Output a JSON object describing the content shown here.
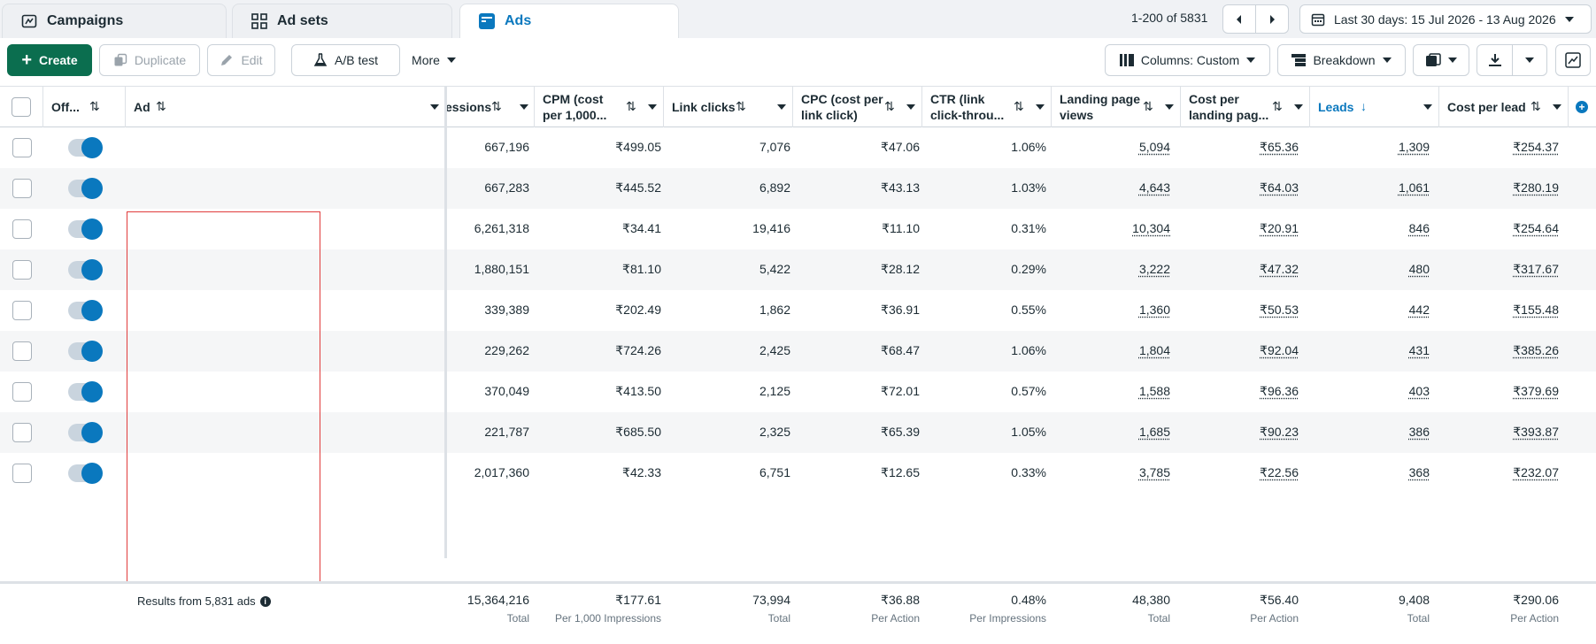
{
  "tabs": [
    {
      "label": "Campaigns",
      "icon": "campaign-icon"
    },
    {
      "label": "Ad sets",
      "icon": "grid-icon"
    },
    {
      "label": "Ads",
      "icon": "ad-icon"
    }
  ],
  "pager": {
    "text": "1-200 of 5831"
  },
  "date_range": "Last 30 days: 15 Jul 2026 - 13 Aug 2026",
  "toolbar": {
    "create": "Create",
    "duplicate": "Duplicate",
    "edit": "Edit",
    "ab_test": "A/B test",
    "more": "More",
    "columns": "Columns: Custom",
    "breakdown": "Breakdown"
  },
  "headers": {
    "off": "Off...",
    "ad": "Ad",
    "impressions": "essions",
    "cpm": "CPM (cost per 1,000...",
    "link_clicks": "Link clicks",
    "cpc": "CPC (cost per link click)",
    "ctr": "CTR (link click-throu...",
    "lpv": "Landing page views",
    "cplpv": "Cost per landing pag...",
    "leads": "Leads",
    "cpl": "Cost per lead"
  },
  "rows": [
    {
      "impressions": "667,196",
      "cpm": "₹499.05",
      "link_clicks": "7,076",
      "cpc": "₹47.06",
      "ctr": "1.06%",
      "lpv": "5,094",
      "cplpv": "₹65.36",
      "leads": "1,309",
      "cpl": "₹254.37"
    },
    {
      "impressions": "667,283",
      "cpm": "₹445.52",
      "link_clicks": "6,892",
      "cpc": "₹43.13",
      "ctr": "1.03%",
      "lpv": "4,643",
      "cplpv": "₹64.03",
      "leads": "1,061",
      "cpl": "₹280.19"
    },
    {
      "impressions": "6,261,318",
      "cpm": "₹34.41",
      "link_clicks": "19,416",
      "cpc": "₹11.10",
      "ctr": "0.31%",
      "lpv": "10,304",
      "cplpv": "₹20.91",
      "leads": "846",
      "cpl": "₹254.64"
    },
    {
      "impressions": "1,880,151",
      "cpm": "₹81.10",
      "link_clicks": "5,422",
      "cpc": "₹28.12",
      "ctr": "0.29%",
      "lpv": "3,222",
      "cplpv": "₹47.32",
      "leads": "480",
      "cpl": "₹317.67"
    },
    {
      "impressions": "339,389",
      "cpm": "₹202.49",
      "link_clicks": "1,862",
      "cpc": "₹36.91",
      "ctr": "0.55%",
      "lpv": "1,360",
      "cplpv": "₹50.53",
      "leads": "442",
      "cpl": "₹155.48"
    },
    {
      "impressions": "229,262",
      "cpm": "₹724.26",
      "link_clicks": "2,425",
      "cpc": "₹68.47",
      "ctr": "1.06%",
      "lpv": "1,804",
      "cplpv": "₹92.04",
      "leads": "431",
      "cpl": "₹385.26"
    },
    {
      "impressions": "370,049",
      "cpm": "₹413.50",
      "link_clicks": "2,125",
      "cpc": "₹72.01",
      "ctr": "0.57%",
      "lpv": "1,588",
      "cplpv": "₹96.36",
      "leads": "403",
      "cpl": "₹379.69"
    },
    {
      "impressions": "221,787",
      "cpm": "₹685.50",
      "link_clicks": "2,325",
      "cpc": "₹65.39",
      "ctr": "1.05%",
      "lpv": "1,685",
      "cplpv": "₹90.23",
      "leads": "386",
      "cpl": "₹393.87"
    },
    {
      "impressions": "2,017,360",
      "cpm": "₹42.33",
      "link_clicks": "6,751",
      "cpc": "₹12.65",
      "ctr": "0.33%",
      "lpv": "3,785",
      "cplpv": "₹22.56",
      "leads": "368",
      "cpl": "₹232.07"
    }
  ],
  "footer": {
    "results": "Results from 5,831 ads",
    "impressions": {
      "total": "15,364,216",
      "sub": "Total"
    },
    "cpm": {
      "total": "₹177.61",
      "sub": "Per 1,000 Impressions"
    },
    "link_clicks": {
      "total": "73,994",
      "sub": "Total"
    },
    "cpc": {
      "total": "₹36.88",
      "sub": "Per Action"
    },
    "ctr": {
      "total": "0.48%",
      "sub": "Per Impressions"
    },
    "lpv": {
      "total": "48,380",
      "sub": "Total"
    },
    "cplpv": {
      "total": "₹56.40",
      "sub": "Per Action"
    },
    "leads": {
      "total": "9,408",
      "sub": "Total"
    },
    "cpl": {
      "total": "₹290.06",
      "sub": "Per Action"
    }
  },
  "colors": {
    "accent": "#0a78be",
    "create": "#0b6e4f",
    "highlight_box": "#e03c3c"
  }
}
